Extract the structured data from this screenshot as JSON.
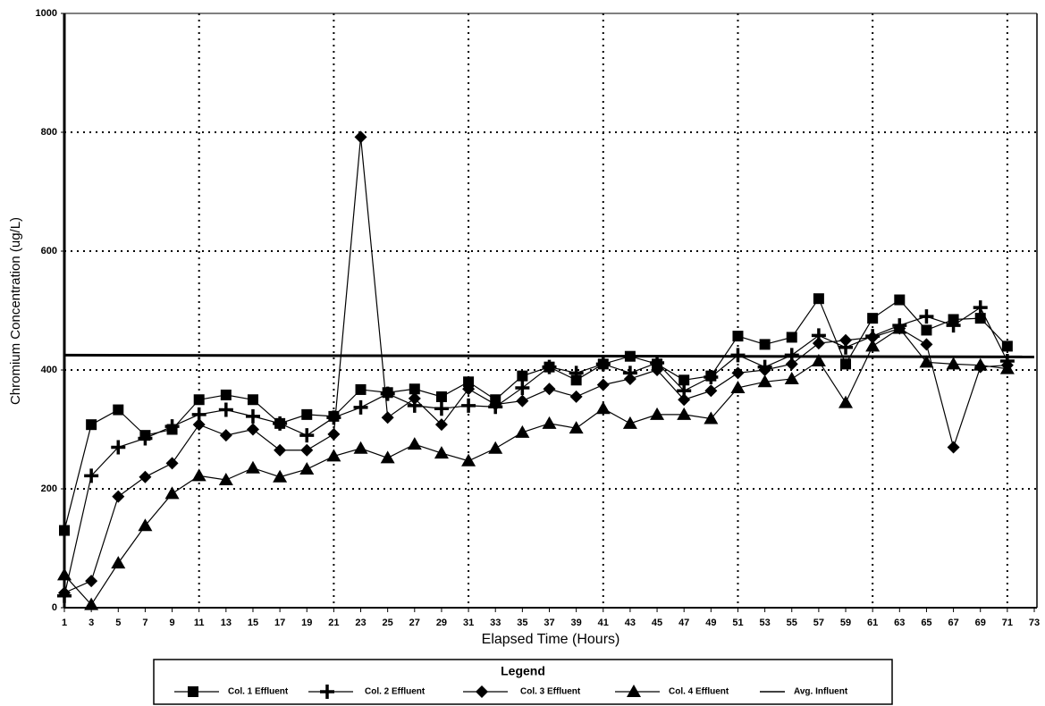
{
  "chart_data": {
    "type": "line",
    "x_label": "Elapsed Time (Hours)",
    "y_label": "Chromium Concentration (ug/L)",
    "legend_title": "Legend",
    "x": [
      1,
      3,
      5,
      7,
      9,
      11,
      13,
      15,
      17,
      19,
      21,
      23,
      25,
      27,
      29,
      31,
      33,
      35,
      37,
      39,
      41,
      43,
      45,
      47,
      49,
      51,
      53,
      55,
      57,
      59,
      61,
      63,
      65,
      67,
      69,
      71
    ],
    "series": [
      {
        "name": "Col. 1 Effluent",
        "color": "#000000",
        "marker": "square",
        "values": [
          130,
          308,
          333,
          290,
          300,
          350,
          358,
          350,
          310,
          325,
          322,
          367,
          362,
          368,
          355,
          380,
          350,
          390,
          405,
          383,
          410,
          423,
          410,
          383,
          390,
          457,
          443,
          455,
          520,
          410,
          487,
          518,
          467,
          485,
          487,
          440
        ]
      },
      {
        "name": "Col. 2 Effluent",
        "color": "#000000",
        "marker": "plus",
        "values": [
          20,
          222,
          270,
          285,
          305,
          325,
          333,
          322,
          310,
          290,
          320,
          337,
          360,
          340,
          335,
          340,
          338,
          370,
          405,
          395,
          410,
          395,
          412,
          365,
          388,
          425,
          405,
          425,
          458,
          438,
          457,
          475,
          490,
          475,
          505,
          415
        ]
      },
      {
        "name": "Col. 3 Effluent",
        "color": "#000000",
        "marker": "diamond",
        "values": [
          25,
          45,
          187,
          220,
          243,
          308,
          290,
          300,
          265,
          265,
          292,
          792,
          320,
          352,
          308,
          368,
          342,
          348,
          368,
          355,
          375,
          385,
          400,
          350,
          365,
          395,
          400,
          410,
          445,
          450,
          455,
          470,
          443,
          270,
          405,
          408
        ]
      },
      {
        "name": "Col. 4 Effluent",
        "color": "#000000",
        "marker": "triangle",
        "values": [
          55,
          5,
          75,
          138,
          192,
          222,
          215,
          235,
          220,
          233,
          255,
          268,
          252,
          275,
          260,
          247,
          268,
          295,
          310,
          302,
          335,
          310,
          325,
          325,
          318,
          370,
          380,
          385,
          415,
          345,
          440,
          470,
          413,
          410,
          408,
          402
        ]
      },
      {
        "name": "Avg. Influent",
        "color": "#000000",
        "marker": "none",
        "x": [
          1,
          73
        ],
        "values": [
          425,
          422
        ]
      }
    ],
    "xlim": [
      1,
      73
    ],
    "xticks": [
      1,
      3,
      5,
      7,
      9,
      11,
      13,
      15,
      17,
      19,
      21,
      23,
      25,
      27,
      29,
      31,
      33,
      35,
      37,
      39,
      41,
      43,
      45,
      47,
      49,
      51,
      53,
      55,
      57,
      59,
      61,
      63,
      65,
      67,
      69,
      71,
      73
    ],
    "xgrid": [
      11,
      21,
      31,
      41,
      51,
      61,
      71
    ],
    "ylim": [
      0,
      1000
    ],
    "yticks": [
      0,
      200,
      400,
      600,
      800,
      1000
    ],
    "grid": true
  }
}
